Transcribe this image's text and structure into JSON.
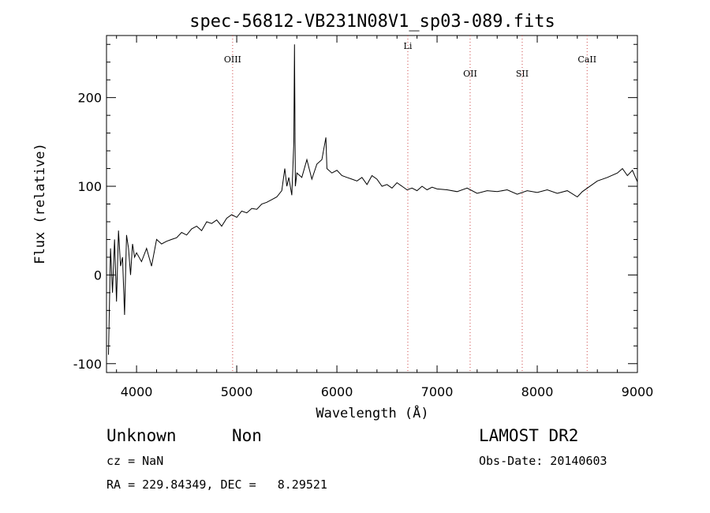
{
  "chart_data": {
    "type": "line",
    "title": "spec-56812-VB231N08V1_sp03-089.fits",
    "xlabel": "Wavelength (Å)",
    "ylabel": "Flux (relative)",
    "xlim": [
      3700,
      9000
    ],
    "ylim": [
      -110,
      270
    ],
    "xticks": [
      4000,
      5000,
      6000,
      7000,
      8000,
      9000
    ],
    "yticks": [
      -100,
      0,
      100,
      200
    ],
    "grid": false,
    "line_color": "#000000",
    "marker_color": "#cc4444",
    "lines": [
      {
        "name": "OIII",
        "wavelength": 4959
      },
      {
        "name": "Li",
        "wavelength": 6708
      },
      {
        "name": "OII",
        "wavelength": 7330
      },
      {
        "name": "SII",
        "wavelength": 7850
      },
      {
        "name": "CaII",
        "wavelength": 8498
      }
    ],
    "series": [
      {
        "name": "",
        "x": [
          3720,
          3740,
          3760,
          3780,
          3800,
          3820,
          3840,
          3860,
          3880,
          3900,
          3920,
          3940,
          3960,
          3980,
          4000,
          4050,
          4100,
          4150,
          4200,
          4250,
          4300,
          4350,
          4400,
          4450,
          4500,
          4550,
          4600,
          4650,
          4700,
          4750,
          4800,
          4850,
          4900,
          4950,
          5000,
          5050,
          5100,
          5150,
          5200,
          5250,
          5300,
          5350,
          5400,
          5450,
          5480,
          5500,
          5520,
          5550,
          5570,
          5577,
          5585,
          5600,
          5650,
          5700,
          5750,
          5800,
          5850,
          5890,
          5900,
          5950,
          6000,
          6050,
          6100,
          6150,
          6200,
          6250,
          6300,
          6350,
          6400,
          6450,
          6500,
          6550,
          6600,
          6650,
          6700,
          6750,
          6800,
          6850,
          6900,
          6950,
          7000,
          7100,
          7200,
          7300,
          7400,
          7500,
          7600,
          7700,
          7800,
          7900,
          8000,
          8100,
          8200,
          8300,
          8400,
          8450,
          8500,
          8600,
          8700,
          8800,
          8850,
          8900,
          8950,
          9000
        ],
        "y": [
          -90,
          30,
          -20,
          40,
          -30,
          50,
          10,
          20,
          -45,
          45,
          30,
          0,
          35,
          20,
          25,
          15,
          30,
          10,
          40,
          35,
          38,
          40,
          42,
          48,
          45,
          52,
          55,
          50,
          60,
          58,
          62,
          55,
          64,
          68,
          65,
          72,
          70,
          75,
          74,
          80,
          82,
          85,
          88,
          95,
          120,
          100,
          110,
          90,
          150,
          260,
          100,
          115,
          110,
          130,
          108,
          125,
          130,
          155,
          120,
          115,
          118,
          112,
          110,
          108,
          106,
          110,
          102,
          112,
          108,
          100,
          102,
          98,
          104,
          100,
          96,
          98,
          95,
          100,
          96,
          99,
          97,
          96,
          94,
          98,
          92,
          95,
          94,
          96,
          91,
          95,
          93,
          96,
          92,
          95,
          88,
          94,
          98,
          106,
          110,
          115,
          120,
          112,
          118,
          105
        ]
      }
    ]
  },
  "footer": {
    "object_class": "Unknown",
    "subclass": "Non",
    "survey": "LAMOST DR2",
    "cz_line": "cz = NaN",
    "obs_date_line": "Obs-Date: 20140603",
    "coords_line": "RA = 229.84349, DEC =   8.29521"
  }
}
